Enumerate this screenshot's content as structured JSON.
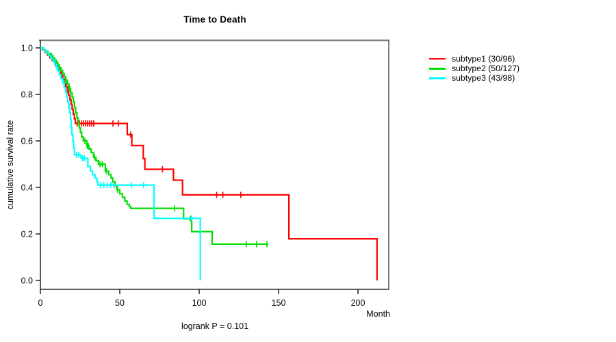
{
  "title": "Time to Death",
  "y_axis_label": "cumulative survival rate",
  "x_axis_label": "Month",
  "footer_annotation": "logrank P = 0.101",
  "colors": {
    "axis": "#000000",
    "box_top": "#808080",
    "box_right": "#606060",
    "background": "#ffffff"
  },
  "chart_data": {
    "type": "line",
    "variant": "kaplan-meier-step",
    "title": "Time to Death",
    "xlabel": "Month",
    "ylabel": "cumulative survival rate",
    "annotation": "logrank P = 0.101",
    "xlim": [
      0,
      219
    ],
    "ylim": [
      0.0,
      1.0
    ],
    "x_ticks": [
      0,
      50,
      100,
      150,
      200
    ],
    "y_ticks": [
      0.0,
      0.2,
      0.4,
      0.6,
      0.8,
      1.0
    ],
    "grid": false,
    "legend_position": "right-outside",
    "series": [
      {
        "name": "subtype1 (30/96)",
        "events": 30,
        "n": 96,
        "color": "#ff0000",
        "end_month": 212,
        "steps": [
          [
            0,
            1
          ],
          [
            1.5,
            0.99
          ],
          [
            3,
            0.979
          ],
          [
            4.5,
            0.968
          ],
          [
            6,
            0.957
          ],
          [
            7.5,
            0.945
          ],
          [
            9,
            0.933
          ],
          [
            10,
            0.921
          ],
          [
            11,
            0.909
          ],
          [
            12,
            0.896
          ],
          [
            13,
            0.882
          ],
          [
            14,
            0.867
          ],
          [
            15,
            0.851
          ],
          [
            16,
            0.834
          ],
          [
            17,
            0.816
          ],
          [
            17.8,
            0.797
          ],
          [
            18.6,
            0.777
          ],
          [
            19.3,
            0.757
          ],
          [
            20,
            0.736
          ],
          [
            20.7,
            0.715
          ],
          [
            21.4,
            0.695
          ],
          [
            22,
            0.675
          ],
          [
            54.7,
            0.627
          ],
          [
            57.6,
            0.58
          ],
          [
            64.8,
            0.524
          ],
          [
            65.8,
            0.478
          ],
          [
            83.8,
            0.431
          ],
          [
            89.5,
            0.368
          ],
          [
            156.5,
            0.179
          ],
          [
            212,
            0
          ]
        ],
        "censor_months": [
          9.5,
          13.5,
          17.3,
          23.3,
          24.6,
          25.9,
          27.2,
          28.4,
          29.7,
          31,
          32.3,
          33.6,
          45.7,
          49.1,
          56.9,
          76.9,
          111,
          114.9,
          126.2
        ]
      },
      {
        "name": "subtype2 (50/127)",
        "events": 50,
        "n": 127,
        "color": "#00dd00",
        "end_month": 143.5,
        "steps": [
          [
            0,
            1
          ],
          [
            2,
            0.992
          ],
          [
            3.5,
            0.984
          ],
          [
            5,
            0.975
          ],
          [
            6.5,
            0.966
          ],
          [
            8,
            0.957
          ],
          [
            9,
            0.947
          ],
          [
            10,
            0.937
          ],
          [
            11,
            0.926
          ],
          [
            12,
            0.915
          ],
          [
            13,
            0.903
          ],
          [
            14,
            0.89
          ],
          [
            15,
            0.876
          ],
          [
            16,
            0.861
          ],
          [
            17,
            0.844
          ],
          [
            18,
            0.826
          ],
          [
            19,
            0.807
          ],
          [
            20,
            0.787
          ],
          [
            20.8,
            0.766
          ],
          [
            21.5,
            0.744
          ],
          [
            22.2,
            0.721
          ],
          [
            23,
            0.699
          ],
          [
            23.8,
            0.677
          ],
          [
            24.5,
            0.656
          ],
          [
            25.2,
            0.636
          ],
          [
            26,
            0.617
          ],
          [
            27,
            0.6
          ],
          [
            29.2,
            0.578
          ],
          [
            30.6,
            0.565
          ],
          [
            32,
            0.55
          ],
          [
            33.5,
            0.53
          ],
          [
            35,
            0.515
          ],
          [
            36.5,
            0.5
          ],
          [
            40.9,
            0.47
          ],
          [
            43,
            0.455
          ],
          [
            44.5,
            0.44
          ],
          [
            45.6,
            0.424
          ],
          [
            47,
            0.407
          ],
          [
            48.3,
            0.39
          ],
          [
            50,
            0.373
          ],
          [
            51.7,
            0.357
          ],
          [
            53.2,
            0.342
          ],
          [
            54.6,
            0.327
          ],
          [
            56,
            0.318
          ],
          [
            56.9,
            0.31
          ],
          [
            90.2,
            0.265
          ],
          [
            95.3,
            0.21
          ],
          [
            108.2,
            0.156
          ]
        ],
        "censor_months": [
          7,
          12,
          16,
          18.5,
          28,
          29.6,
          30.2,
          34,
          37.5,
          39,
          41.5,
          48.6,
          84.5,
          94.5,
          129.7,
          136.2,
          142.7
        ]
      },
      {
        "name": "subtype3 (43/98)",
        "events": 43,
        "n": 98,
        "color": "#00ffff",
        "end_month": 100.7,
        "steps": [
          [
            0,
            1
          ],
          [
            2,
            0.99
          ],
          [
            3.5,
            0.979
          ],
          [
            5,
            0.967
          ],
          [
            6.5,
            0.955
          ],
          [
            8,
            0.943
          ],
          [
            9,
            0.93
          ],
          [
            10,
            0.916
          ],
          [
            11,
            0.901
          ],
          [
            12,
            0.885
          ],
          [
            13,
            0.868
          ],
          [
            14,
            0.85
          ],
          [
            15,
            0.83
          ],
          [
            15.8,
            0.81
          ],
          [
            16.5,
            0.789
          ],
          [
            17.2,
            0.768
          ],
          [
            17.9,
            0.747
          ],
          [
            18.4,
            0.72
          ],
          [
            19,
            0.69
          ],
          [
            19.4,
            0.657
          ],
          [
            19.8,
            0.627
          ],
          [
            20.5,
            0.598
          ],
          [
            21,
            0.569
          ],
          [
            21.5,
            0.54
          ],
          [
            25.6,
            0.525
          ],
          [
            29.9,
            0.49
          ],
          [
            31.5,
            0.47
          ],
          [
            32.8,
            0.455
          ],
          [
            34.4,
            0.44
          ],
          [
            35.6,
            0.425
          ],
          [
            36.3,
            0.41
          ],
          [
            71.6,
            0.267
          ],
          [
            100.7,
            0
          ]
        ],
        "censor_months": [
          10.5,
          14.8,
          18.1,
          22.7,
          24.1,
          26.5,
          27.7,
          37.8,
          40,
          42.1,
          44.3,
          46.4,
          57.3,
          65,
          95.3
        ]
      }
    ]
  }
}
